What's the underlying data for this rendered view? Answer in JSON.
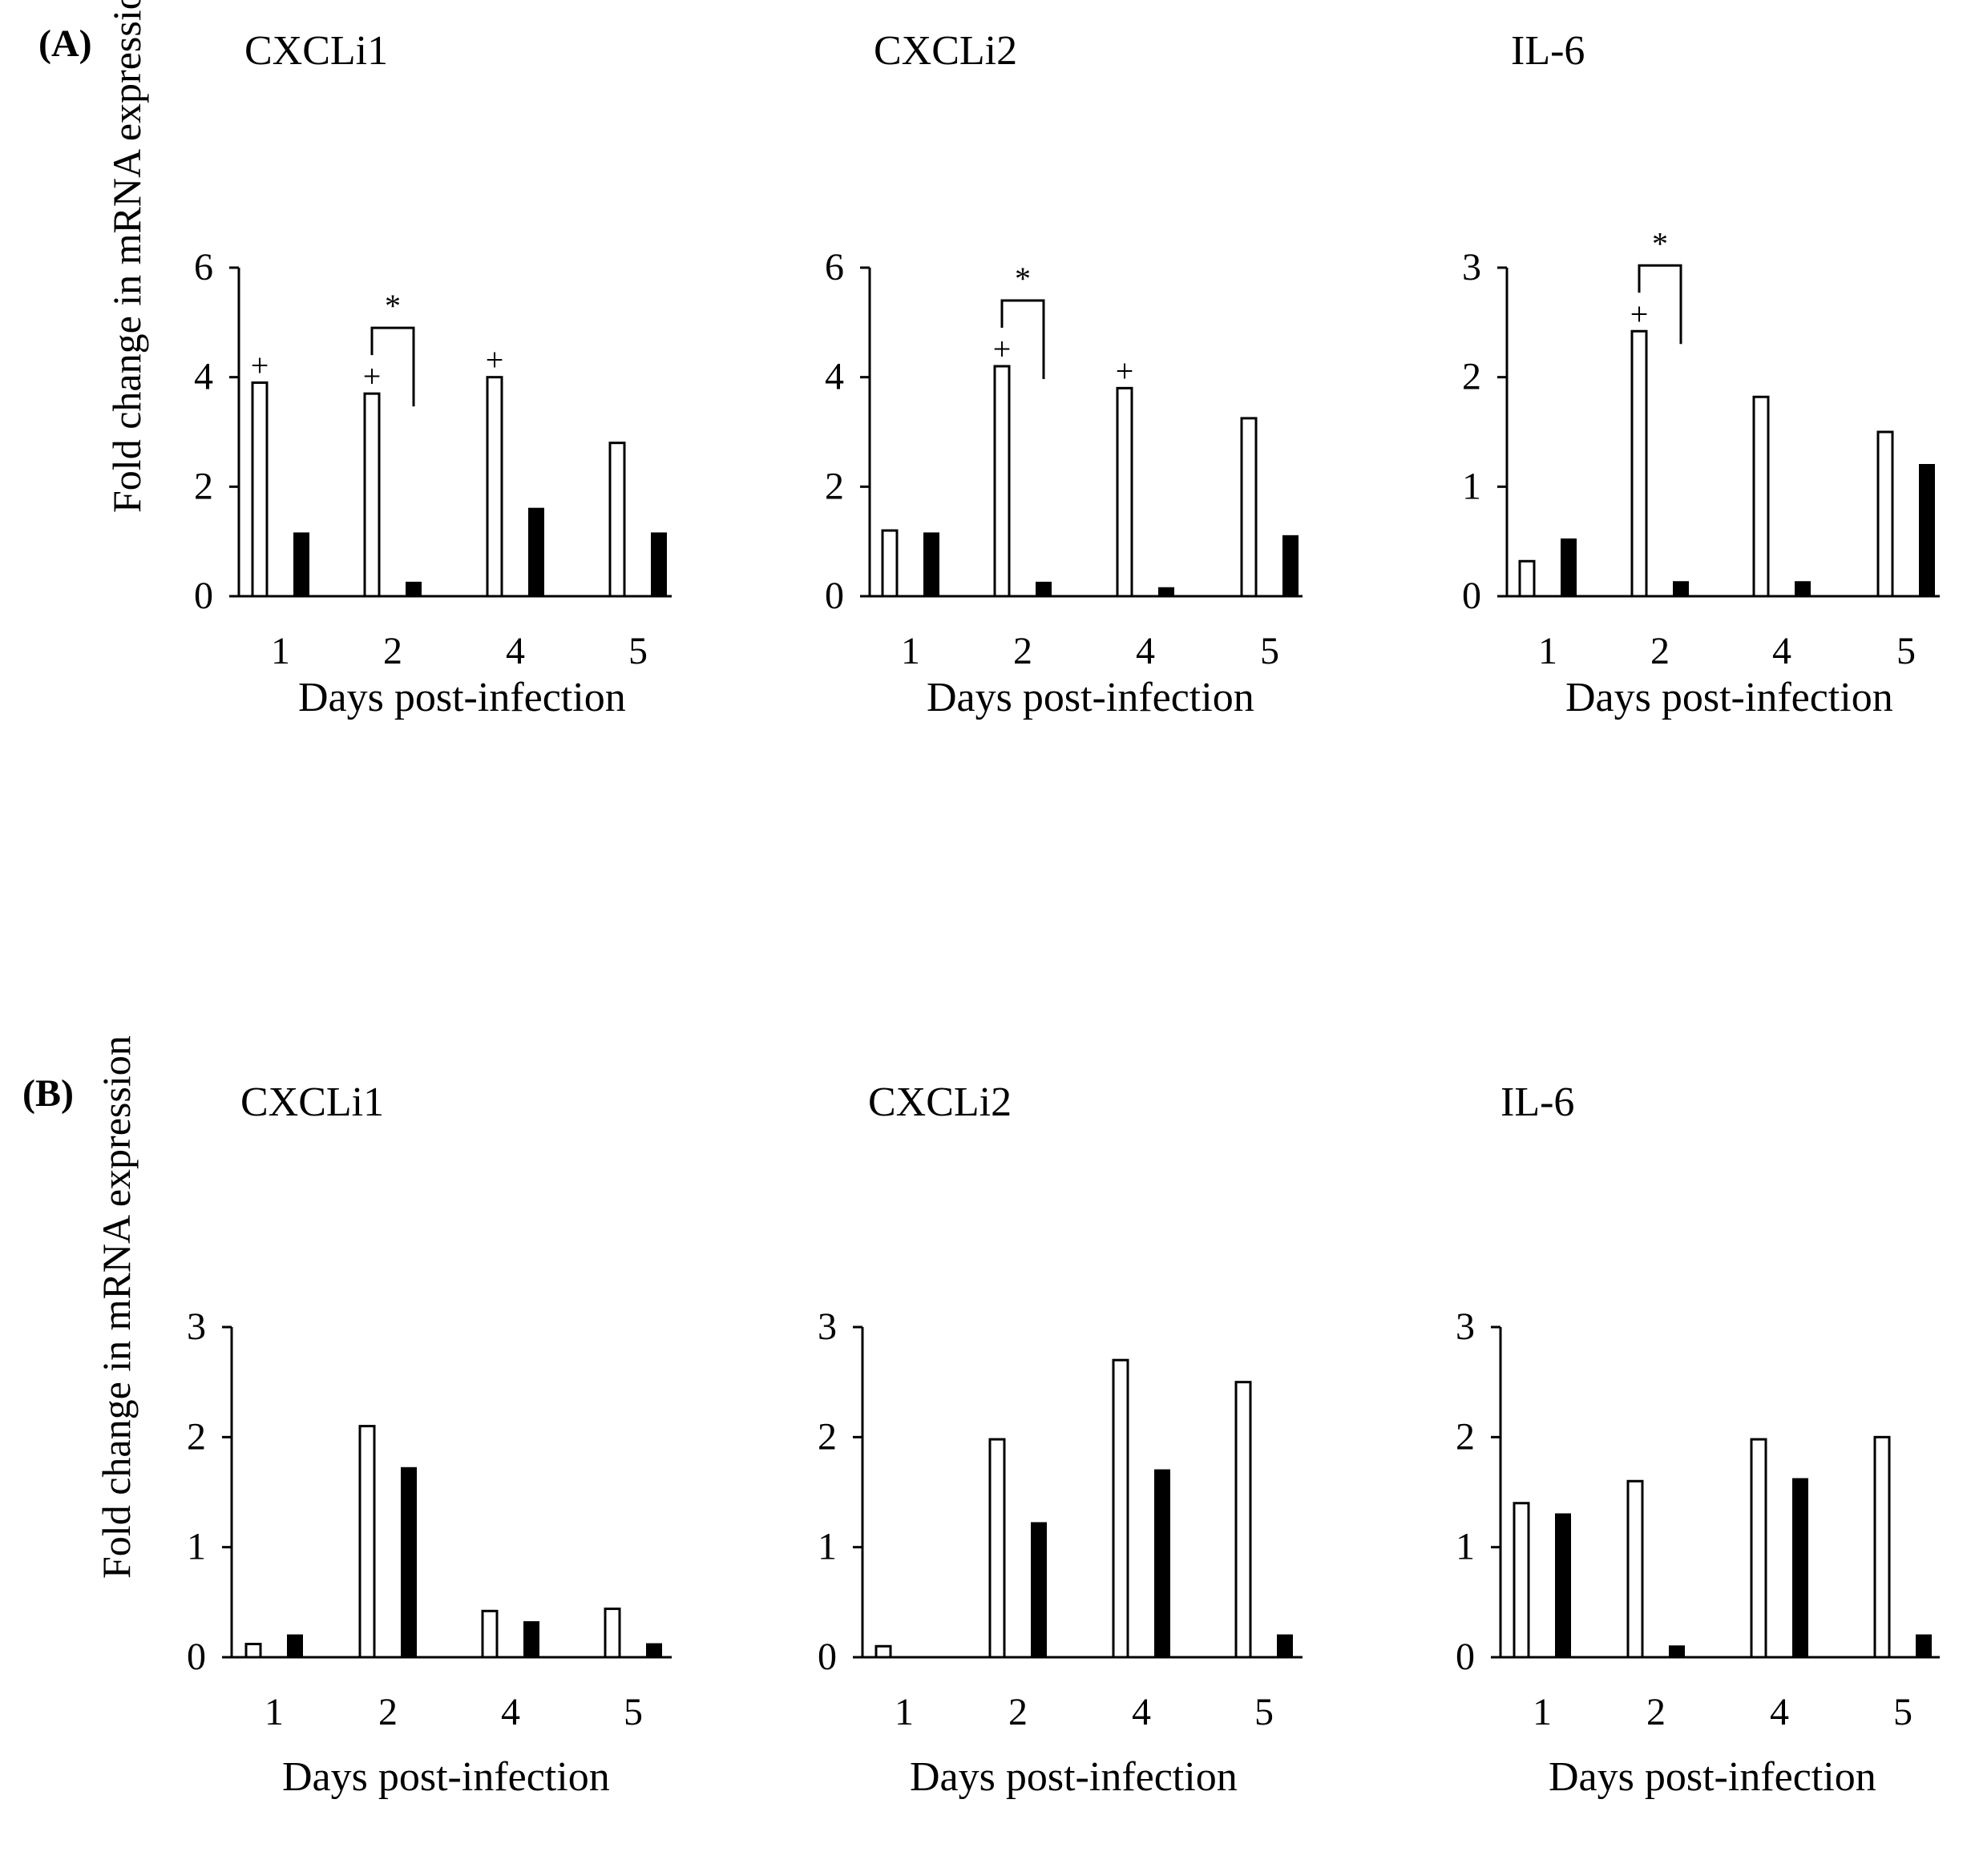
{
  "figure": {
    "colors": {
      "bar_open_fill": "#ffffff",
      "bar_filled_fill": "#000000",
      "axis": "#000000"
    }
  },
  "chart_data": [
    {
      "type": "bar",
      "panel": "(A)",
      "title": "CXCLi1",
      "xlabel": "Days post-infection",
      "ylabel": "Fold change in mRNA expression",
      "categories": [
        "1",
        "2",
        "4",
        "5"
      ],
      "ylim": [
        0,
        6
      ],
      "yticks": [
        "0",
        "2",
        "4",
        "6"
      ],
      "series": [
        {
          "name": "open",
          "values": [
            3.9,
            3.7,
            4.0,
            2.8
          ],
          "markers": [
            "+",
            "+",
            "+",
            ""
          ]
        },
        {
          "name": "filled",
          "values": [
            1.15,
            0.25,
            1.6,
            1.15
          ]
        }
      ],
      "significance": [
        {
          "category": "2",
          "label": "*"
        }
      ]
    },
    {
      "type": "bar",
      "panel": "",
      "title": "CXCLi2",
      "xlabel": "Days post-infection",
      "ylabel": "",
      "categories": [
        "1",
        "2",
        "4",
        "5"
      ],
      "ylim": [
        0,
        6
      ],
      "yticks": [
        "0",
        "2",
        "4",
        "6"
      ],
      "series": [
        {
          "name": "open",
          "values": [
            1.2,
            4.2,
            3.8,
            3.25
          ],
          "markers": [
            "",
            "+",
            "+",
            ""
          ]
        },
        {
          "name": "filled",
          "values": [
            1.15,
            0.25,
            0.15,
            1.1
          ]
        }
      ],
      "significance": [
        {
          "category": "2",
          "label": "*"
        }
      ]
    },
    {
      "type": "bar",
      "panel": "",
      "title": "IL-6",
      "xlabel": "Days post-infection",
      "ylabel": "",
      "categories": [
        "1",
        "2",
        "4",
        "5"
      ],
      "ylim": [
        0,
        3
      ],
      "yticks": [
        "0",
        "1",
        "2",
        "3"
      ],
      "series": [
        {
          "name": "open",
          "values": [
            0.32,
            2.42,
            1.82,
            1.5
          ],
          "markers": [
            "",
            "+",
            "",
            ""
          ]
        },
        {
          "name": "filled",
          "values": [
            0.52,
            0.13,
            0.13,
            1.2
          ]
        }
      ],
      "significance": [
        {
          "category": "2",
          "label": "*"
        }
      ]
    },
    {
      "type": "bar",
      "panel": "(B)",
      "title": "CXCLi1",
      "xlabel": "Days post-infection",
      "ylabel": "Fold change in mRNA expression",
      "categories": [
        "1",
        "2",
        "4",
        "5"
      ],
      "ylim": [
        0,
        3
      ],
      "yticks": [
        "0",
        "1",
        "2",
        "3"
      ],
      "series": [
        {
          "name": "open",
          "values": [
            0.12,
            2.1,
            0.42,
            0.44
          ]
        },
        {
          "name": "filled",
          "values": [
            0.2,
            1.72,
            0.32,
            0.12
          ]
        }
      ]
    },
    {
      "type": "bar",
      "panel": "",
      "title": "CXCLi2",
      "xlabel": "Days post-infection",
      "ylabel": "",
      "categories": [
        "1",
        "2",
        "4",
        "5"
      ],
      "ylim": [
        0,
        3
      ],
      "yticks": [
        "0",
        "1",
        "2",
        "3"
      ],
      "series": [
        {
          "name": "open",
          "values": [
            0.1,
            1.98,
            2.7,
            2.5
          ]
        },
        {
          "name": "filled",
          "values": [
            0,
            1.22,
            1.7,
            0.2
          ]
        }
      ]
    },
    {
      "type": "bar",
      "panel": "",
      "title": "IL-6",
      "xlabel": "Days post-infection",
      "ylabel": "",
      "categories": [
        "1",
        "2",
        "4",
        "5"
      ],
      "ylim": [
        0,
        3
      ],
      "yticks": [
        "0",
        "1",
        "2",
        "3"
      ],
      "series": [
        {
          "name": "open",
          "values": [
            1.4,
            1.6,
            1.98,
            2.0
          ]
        },
        {
          "name": "filled",
          "values": [
            1.3,
            0.1,
            1.62,
            0.2
          ]
        }
      ]
    }
  ]
}
